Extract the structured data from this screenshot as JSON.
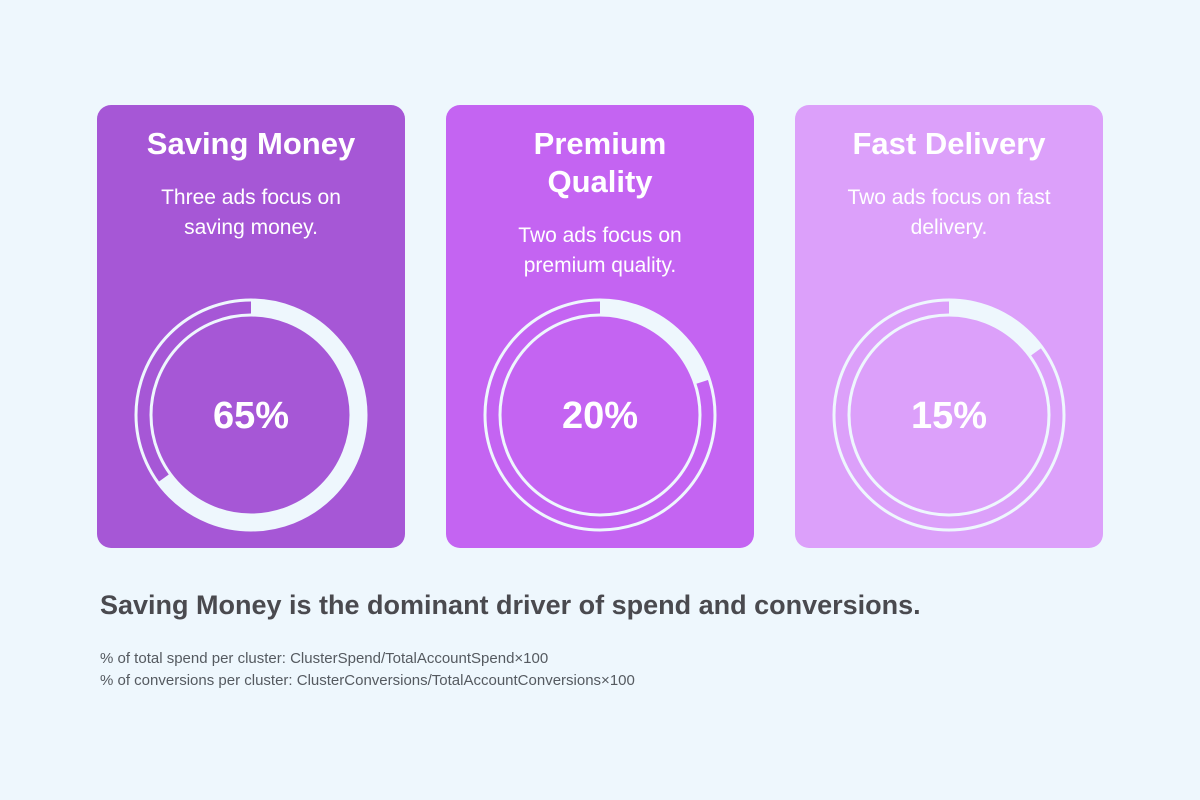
{
  "chart_data": {
    "type": "pie",
    "title": "",
    "categories": [
      "Saving Money",
      "Premium Quality",
      "Fast Delivery"
    ],
    "values": [
      65,
      20,
      15
    ],
    "unit": "%",
    "descriptions": [
      "Three ads focus on saving money.",
      "Two ads focus on premium quality.",
      "Two ads focus on fast delivery."
    ],
    "value_labels": [
      "65%",
      "20%",
      "15%"
    ],
    "colors": [
      "#a657d6",
      "#c464f2",
      "#dca0fa"
    ]
  },
  "caption": "Saving Money is the dominant driver of spend and conversions.",
  "formulas": [
    "% of total spend per cluster: ClusterSpend/TotalAccountSpend×100",
    "% of conversions per cluster: ClusterConversions/TotalAccountConversions×100"
  ]
}
